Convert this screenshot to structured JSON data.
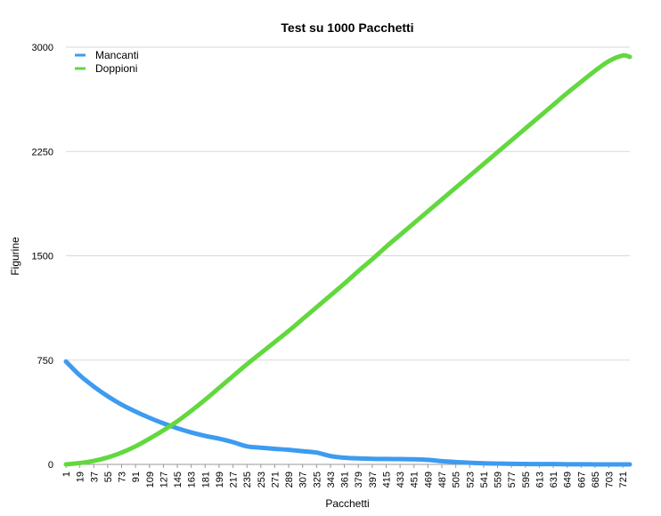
{
  "chart_data": {
    "type": "line",
    "title": "Test su 1000 Pacchetti",
    "xlabel": "Pacchetti",
    "ylabel": "Figurine",
    "ylim": [
      0,
      3000
    ],
    "yticks": [
      "0",
      "750",
      "1500",
      "2250",
      "3000"
    ],
    "x_tick_labels": [
      "1",
      "19",
      "37",
      "55",
      "73",
      "91",
      "109",
      "127",
      "145",
      "163",
      "181",
      "199",
      "217",
      "235",
      "253",
      "271",
      "289",
      "307",
      "325",
      "343",
      "361",
      "379",
      "397",
      "415",
      "433",
      "451",
      "469",
      "487",
      "505",
      "523",
      "541",
      "559",
      "577",
      "595",
      "613",
      "631",
      "649",
      "667",
      "685",
      "703",
      "721"
    ],
    "legend_position": "top-left",
    "grid": true,
    "series": [
      {
        "name": "Mancanti",
        "color": "#3d9bf0",
        "points": [
          [
            1,
            740
          ],
          [
            19,
            640
          ],
          [
            37,
            560
          ],
          [
            55,
            490
          ],
          [
            73,
            430
          ],
          [
            91,
            380
          ],
          [
            109,
            335
          ],
          [
            127,
            295
          ],
          [
            145,
            260
          ],
          [
            163,
            230
          ],
          [
            181,
            205
          ],
          [
            199,
            185
          ],
          [
            217,
            160
          ],
          [
            235,
            130
          ],
          [
            253,
            120
          ],
          [
            271,
            112
          ],
          [
            289,
            105
          ],
          [
            307,
            95
          ],
          [
            325,
            85
          ],
          [
            343,
            60
          ],
          [
            361,
            48
          ],
          [
            379,
            43
          ],
          [
            397,
            40
          ],
          [
            415,
            39
          ],
          [
            433,
            38
          ],
          [
            451,
            37
          ],
          [
            469,
            33
          ],
          [
            487,
            23
          ],
          [
            505,
            17
          ],
          [
            523,
            12
          ],
          [
            541,
            8
          ],
          [
            559,
            6
          ],
          [
            577,
            4
          ],
          [
            595,
            3
          ],
          [
            613,
            2
          ],
          [
            631,
            2
          ],
          [
            649,
            1
          ],
          [
            667,
            1
          ],
          [
            685,
            0
          ],
          [
            703,
            0
          ],
          [
            721,
            0
          ],
          [
            730,
            0
          ]
        ]
      },
      {
        "name": "Doppioni",
        "color": "#62d83e",
        "points": [
          [
            1,
            0
          ],
          [
            19,
            10
          ],
          [
            37,
            25
          ],
          [
            55,
            50
          ],
          [
            73,
            85
          ],
          [
            91,
            130
          ],
          [
            109,
            185
          ],
          [
            127,
            245
          ],
          [
            145,
            310
          ],
          [
            163,
            385
          ],
          [
            181,
            465
          ],
          [
            199,
            550
          ],
          [
            217,
            635
          ],
          [
            235,
            720
          ],
          [
            253,
            800
          ],
          [
            271,
            880
          ],
          [
            289,
            960
          ],
          [
            307,
            1045
          ],
          [
            325,
            1130
          ],
          [
            343,
            1215
          ],
          [
            361,
            1300
          ],
          [
            379,
            1390
          ],
          [
            397,
            1475
          ],
          [
            415,
            1565
          ],
          [
            433,
            1650
          ],
          [
            451,
            1735
          ],
          [
            469,
            1820
          ],
          [
            487,
            1905
          ],
          [
            505,
            1990
          ],
          [
            523,
            2075
          ],
          [
            541,
            2160
          ],
          [
            559,
            2245
          ],
          [
            577,
            2330
          ],
          [
            595,
            2415
          ],
          [
            613,
            2500
          ],
          [
            631,
            2585
          ],
          [
            649,
            2670
          ],
          [
            667,
            2750
          ],
          [
            685,
            2830
          ],
          [
            703,
            2900
          ],
          [
            721,
            2940
          ],
          [
            730,
            2930
          ]
        ]
      }
    ]
  }
}
